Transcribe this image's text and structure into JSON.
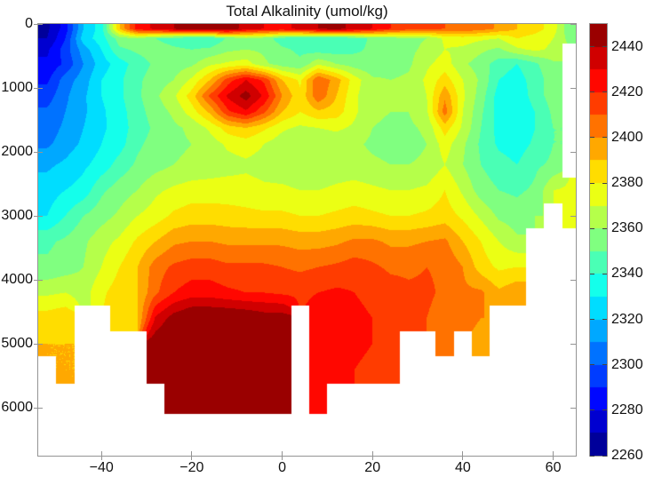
{
  "figure": {
    "background": "#ffffff"
  },
  "chart_data": {
    "type": "heatmap",
    "title": "Total Alkalinity (umol/kg)",
    "units": "umol/kg",
    "colormap": "jet",
    "colorbar_levels": 19,
    "clim": [
      2260,
      2450
    ],
    "colorbar_ticks": [
      2440,
      2420,
      2400,
      2380,
      2360,
      2340,
      2320,
      2300,
      2280,
      2260
    ],
    "xlim": [
      -54,
      65
    ],
    "x_ticks": [
      -40,
      -20,
      0,
      20,
      40,
      60
    ],
    "ylim": [
      0,
      6750
    ],
    "y_inverted": true,
    "y_ticks": [
      0,
      1000,
      2000,
      3000,
      4000,
      5000,
      6000
    ],
    "grid": false,
    "legend": "colorbar-right",
    "no_data_color": "#ffffff",
    "axis_color": "#949494",
    "text_color": "#111111",
    "lat_centers": [
      -52,
      -48,
      -44,
      -40,
      -36,
      -32,
      -28,
      -24,
      -20,
      -16,
      -12,
      -8,
      -4,
      0,
      4,
      8,
      12,
      16,
      20,
      24,
      28,
      32,
      36,
      40,
      44,
      48,
      52,
      56,
      60,
      64
    ],
    "depth_edges": [
      0,
      150,
      300,
      500,
      750,
      1000,
      1250,
      1500,
      1750,
      2000,
      2400,
      2800,
      3200,
      3600,
      4000,
      4400,
      4800,
      5200,
      5600,
      6100
    ],
    "values": [
      [
        2268,
        2285,
        2320,
        2335,
        2390,
        2425,
        2432,
        2440,
        2448,
        2450,
        2448,
        2435,
        2430,
        2428,
        2432,
        2440,
        2442,
        2438,
        2430,
        2420,
        2415,
        2412,
        2410,
        2408,
        2405,
        2398,
        2390,
        2385,
        2375,
        2350
      ],
      [
        2270,
        2290,
        2325,
        2335,
        2355,
        2360,
        2350,
        2345,
        2342,
        2340,
        2352,
        2358,
        2355,
        2345,
        2342,
        2340,
        2342,
        2345,
        2352,
        2355,
        2358,
        2360,
        2372,
        2375,
        2372,
        2370,
        2380,
        2375,
        2370,
        2355
      ],
      [
        2278,
        2295,
        2315,
        2330,
        2348,
        2352,
        2355,
        2352,
        2350,
        2352,
        2358,
        2360,
        2358,
        2352,
        2348,
        2345,
        2345,
        2348,
        2352,
        2355,
        2358,
        2362,
        2370,
        2368,
        2362,
        2358,
        2368,
        2372,
        2368,
        null
      ],
      [
        2282,
        2292,
        2310,
        2325,
        2335,
        2345,
        2352,
        2355,
        2358,
        2368,
        2372,
        2375,
        2362,
        2355,
        2352,
        2368,
        2360,
        2355,
        2352,
        2355,
        2358,
        2368,
        2375,
        2362,
        2355,
        2345,
        2340,
        2348,
        2358,
        null
      ],
      [
        2288,
        2305,
        2315,
        2330,
        2338,
        2348,
        2355,
        2360,
        2372,
        2390,
        2415,
        2430,
        2418,
        2390,
        2378,
        2410,
        2395,
        2375,
        2362,
        2360,
        2362,
        2372,
        2385,
        2370,
        2358,
        2340,
        2335,
        2345,
        2355,
        null
      ],
      [
        2295,
        2308,
        2318,
        2330,
        2338,
        2348,
        2358,
        2368,
        2385,
        2412,
        2432,
        2445,
        2428,
        2400,
        2382,
        2408,
        2390,
        2372,
        2362,
        2360,
        2362,
        2370,
        2398,
        2372,
        2355,
        2335,
        2332,
        2345,
        2355,
        null
      ],
      [
        2302,
        2310,
        2318,
        2328,
        2336,
        2346,
        2355,
        2362,
        2375,
        2392,
        2418,
        2428,
        2412,
        2390,
        2380,
        2388,
        2385,
        2372,
        2362,
        2360,
        2360,
        2368,
        2405,
        2370,
        2352,
        2335,
        2330,
        2340,
        2352,
        null
      ],
      [
        2305,
        2312,
        2320,
        2328,
        2335,
        2345,
        2352,
        2358,
        2362,
        2372,
        2385,
        2390,
        2382,
        2372,
        2368,
        2370,
        2372,
        2368,
        2360,
        2358,
        2358,
        2362,
        2385,
        2368,
        2350,
        2336,
        2332,
        2340,
        2350,
        null
      ],
      [
        2308,
        2315,
        2322,
        2330,
        2336,
        2348,
        2354,
        2358,
        2360,
        2365,
        2372,
        2375,
        2370,
        2364,
        2360,
        2362,
        2364,
        2362,
        2358,
        2356,
        2356,
        2360,
        2375,
        2362,
        2348,
        2338,
        2335,
        2342,
        2350,
        null
      ],
      [
        2318,
        2322,
        2328,
        2334,
        2344,
        2352,
        2356,
        2360,
        2362,
        2364,
        2366,
        2368,
        2366,
        2364,
        2362,
        2362,
        2364,
        2364,
        2362,
        2360,
        2360,
        2362,
        2370,
        2360,
        2350,
        2344,
        2340,
        2348,
        2352,
        null
      ],
      [
        2325,
        2330,
        2334,
        2348,
        2355,
        2360,
        2368,
        2372,
        2375,
        2375,
        2375,
        2374,
        2372,
        2372,
        2370,
        2370,
        2372,
        2374,
        2372,
        2370,
        2370,
        2372,
        2380,
        2368,
        2355,
        2350,
        2348,
        2352,
        2370,
        2372
      ],
      [
        2330,
        2340,
        2350,
        2356,
        2362,
        2370,
        2375,
        2382,
        2385,
        2385,
        2384,
        2383,
        2382,
        2382,
        2380,
        2380,
        2382,
        2384,
        2382,
        2380,
        2380,
        2382,
        2385,
        2378,
        2368,
        2358,
        2355,
        2360,
        null,
        2375
      ],
      [
        2348,
        2352,
        2358,
        2366,
        2372,
        2382,
        2390,
        2398,
        2400,
        2400,
        2398,
        2398,
        2398,
        2398,
        2396,
        2396,
        2398,
        2402,
        2402,
        2398,
        2398,
        2400,
        2402,
        2390,
        2380,
        2370,
        2362,
        null,
        null,
        null
      ],
      [
        2352,
        2355,
        2360,
        2370,
        2380,
        2390,
        2405,
        2412,
        2415,
        2415,
        2412,
        2412,
        2412,
        2410,
        2408,
        2410,
        2412,
        2415,
        2412,
        2408,
        2408,
        2410,
        2408,
        2400,
        2385,
        2378,
        2380,
        null,
        null,
        null
      ],
      [
        2368,
        2370,
        2365,
        2378,
        2385,
        2390,
        2408,
        2420,
        2425,
        2425,
        2422,
        2420,
        2420,
        2418,
        2418,
        2420,
        2422,
        2420,
        2418,
        2415,
        2412,
        2412,
        2408,
        2402,
        2402,
        2392,
        2398,
        null,
        null,
        null
      ],
      [
        2385,
        2388,
        null,
        null,
        2388,
        2390,
        2432,
        2445,
        2452,
        2452,
        2452,
        2450,
        2446,
        2446,
        null,
        2425,
        2425,
        2422,
        2420,
        2415,
        2412,
        2410,
        2405,
        2402,
        2400,
        null,
        null,
        null,
        null,
        null
      ],
      [
        2390,
        2390,
        null,
        null,
        null,
        null,
        2448,
        2452,
        2452,
        2452,
        2452,
        2450,
        2448,
        2446,
        null,
        2425,
        2425,
        2422,
        2420,
        2415,
        null,
        null,
        2405,
        null,
        2398,
        null,
        null,
        null,
        null,
        null
      ],
      [
        null,
        2390,
        null,
        null,
        null,
        null,
        2448,
        2452,
        2450,
        2452,
        2452,
        2450,
        2448,
        2446,
        null,
        2425,
        2422,
        2420,
        2418,
        2412,
        null,
        null,
        null,
        null,
        null,
        null,
        null,
        null,
        null,
        null
      ],
      [
        null,
        null,
        null,
        null,
        null,
        null,
        null,
        2450,
        2450,
        2452,
        2452,
        2450,
        2448,
        2442,
        null,
        2422,
        null,
        null,
        null,
        null,
        null,
        null,
        null,
        null,
        null,
        null,
        null,
        null,
        null,
        null
      ]
    ]
  }
}
